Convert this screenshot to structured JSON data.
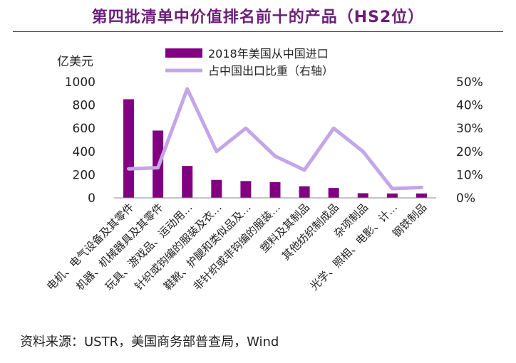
{
  "title": "第四批清单中价值排名前十的产品（HS2位）",
  "source": "资料来源：USTR，美国商务部普查局，Wind",
  "colors": {
    "bar": "#800080",
    "line": "#c3a6e8",
    "title": "#6b1f7a"
  },
  "chart_data": {
    "type": "bar",
    "y_left_label": "亿美元",
    "y_left_ticks": [
      "0",
      "200",
      "400",
      "600",
      "800",
      "1000"
    ],
    "y_left_lim": [
      0,
      1000
    ],
    "y_right_ticks": [
      "0%",
      "10%",
      "20%",
      "30%",
      "40%",
      "50%"
    ],
    "y_right_lim": [
      0,
      50
    ],
    "legend_position": "top",
    "categories": [
      "电机、电气设备及其零件",
      "机器、机械器具及其零件",
      "玩具、游戏品、运动用…",
      "针织或钩编的服装及衣…",
      "鞋靴、护腿和类似品及…",
      "非针织或非钩编的服装…",
      "塑料及其制品",
      "其他纺织制成品",
      "杂项制品",
      "光学、照相、电影、计…",
      "钢铁制品"
    ],
    "series": [
      {
        "name": "2018年美国从中国进口",
        "type": "bar",
        "axis": "left",
        "values": [
          850,
          580,
          275,
          155,
          145,
          135,
          100,
          85,
          40,
          38,
          38
        ]
      },
      {
        "name": "占中国出口比重（右轴）",
        "type": "line",
        "axis": "right",
        "values": [
          12.5,
          13,
          47,
          20,
          30,
          18,
          12,
          30,
          20,
          4,
          4.5
        ]
      }
    ]
  }
}
